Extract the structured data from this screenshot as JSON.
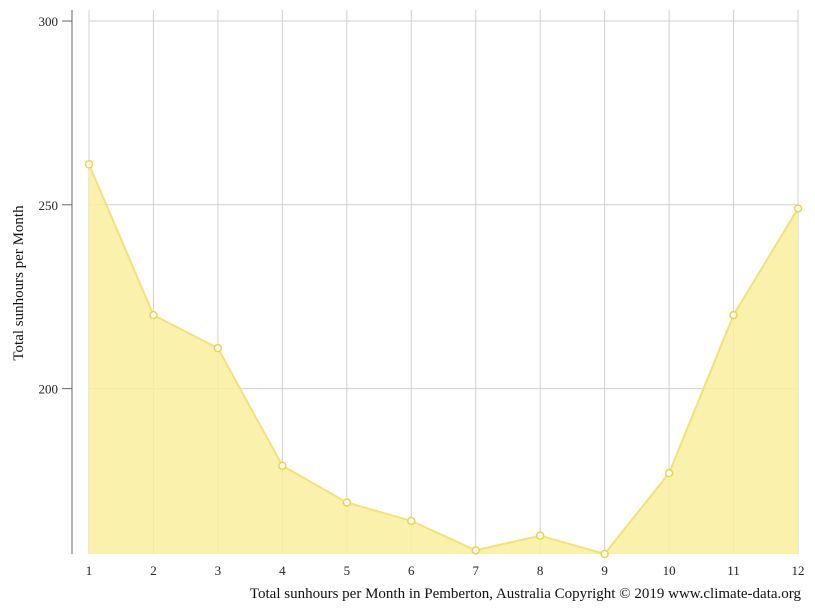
{
  "chart_data": {
    "type": "area",
    "x": [
      "1",
      "2",
      "3",
      "4",
      "5",
      "6",
      "7",
      "8",
      "9",
      "10",
      "11",
      "12"
    ],
    "series": [
      {
        "values": [
          261,
          220,
          211,
          179,
          169,
          164,
          156,
          160,
          155,
          177,
          220,
          249
        ],
        "color": "#f9ee9f",
        "line_color": "#f5e07a",
        "marker_color": "#f0d24a"
      }
    ],
    "title": "",
    "xlabel": "",
    "ylabel": "Total sunhours per Month",
    "ylim": [
      155,
      303
    ],
    "yticks": [
      200,
      250,
      300
    ],
    "grid": true
  },
  "caption": "Total sunhours per Month in Pemberton, Australia Copyright © 2019 www.climate-data.org"
}
